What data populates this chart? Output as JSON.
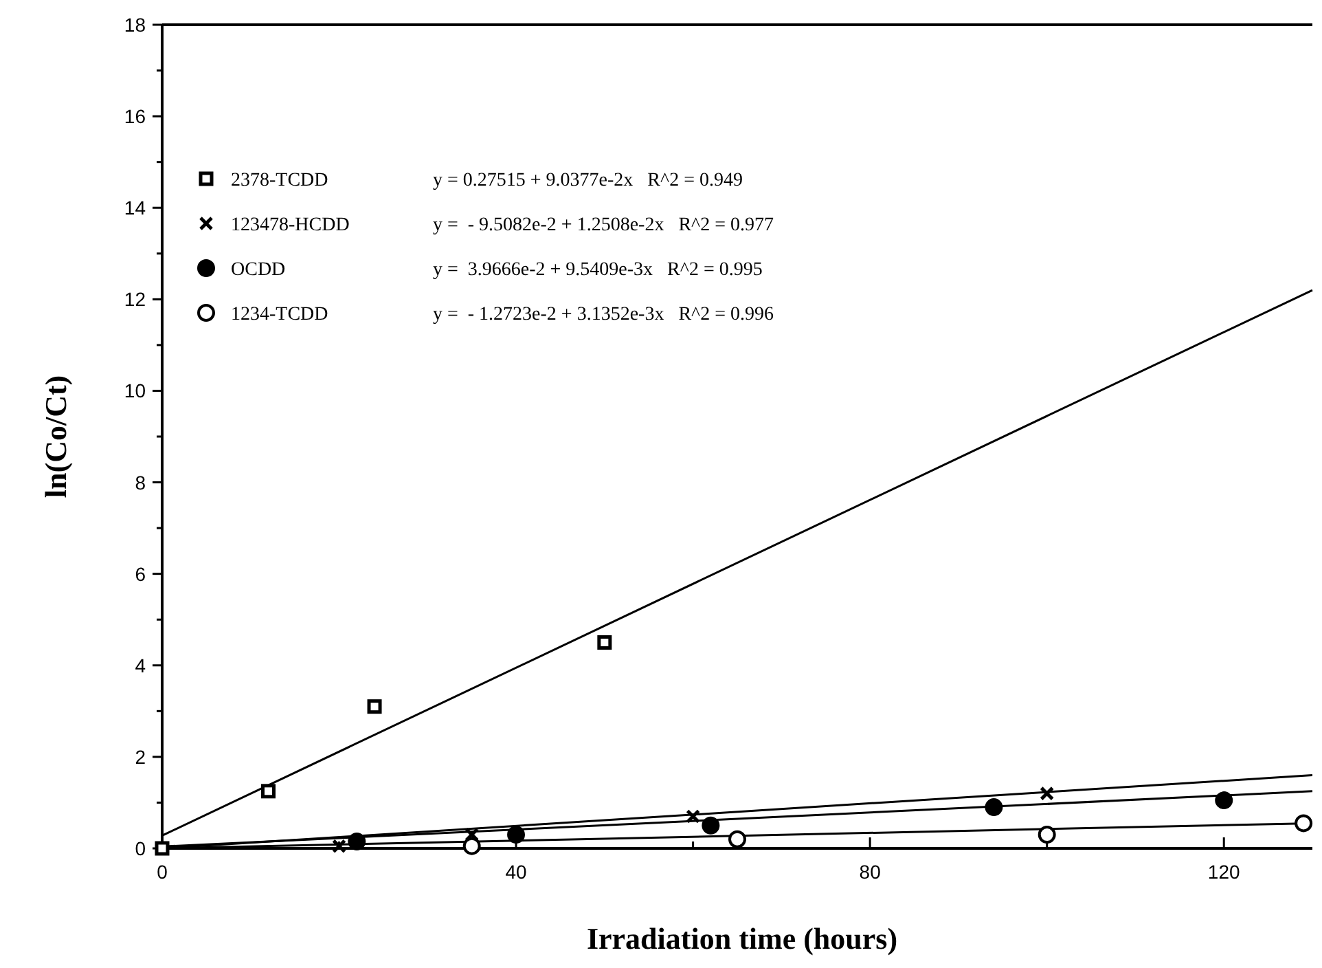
{
  "chart_data": {
    "type": "scatter",
    "xlabel": "Irradiation time (hours)",
    "ylabel": "ln(Co/Ct)",
    "xlim": [
      0,
      130
    ],
    "ylim": [
      0,
      18
    ],
    "xticks": [
      0,
      {
        "value": 20,
        "label": null
      },
      40,
      {
        "value": 60,
        "label": null
      },
      80,
      {
        "value": 100,
        "label": null
      },
      120
    ],
    "yticks": [
      0,
      {
        "value": 1,
        "label": null
      },
      2,
      {
        "value": 3,
        "label": null
      },
      4,
      {
        "value": 5,
        "label": null
      },
      6,
      {
        "value": 7,
        "label": null
      },
      8,
      {
        "value": 9,
        "label": null
      },
      10,
      {
        "value": 11,
        "label": null
      },
      12,
      {
        "value": 13,
        "label": null
      },
      14,
      {
        "value": 15,
        "label": null
      },
      16,
      {
        "value": 17,
        "label": null
      },
      18
    ],
    "grid": false,
    "legend": "top left",
    "series": [
      {
        "name": "2378-TCDD",
        "color": "#000000",
        "marker": "square",
        "x": [
          0,
          12,
          24,
          50
        ],
        "values": [
          0,
          1.25,
          3.1,
          4.5
        ]
      },
      {
        "name": "123478-HCDD",
        "color": "#000000",
        "marker": "cross",
        "x": [
          20,
          35,
          60,
          100
        ],
        "values": [
          0.05,
          0.3,
          0.7,
          1.2
        ]
      },
      {
        "name": "OCDD",
        "color": "#000000",
        "marker": "circle",
        "x": [
          22,
          40,
          62,
          94,
          120
        ],
        "values": [
          0.15,
          0.3,
          0.5,
          0.9,
          1.05
        ]
      },
      {
        "name": "1234-TCDD",
        "color": "#ffffff",
        "marker": "circle",
        "x": [
          35,
          65,
          100,
          129
        ],
        "values": [
          0.05,
          0.2,
          0.3,
          0.55
        ]
      },
      {
        "type": "line",
        "color": "#000000",
        "marker": "none",
        "x": [
          0,
          130
        ],
        "values": [
          0.28,
          12.2
        ]
      },
      {
        "type": "line",
        "color": "#000000",
        "marker": "none",
        "x": [
          0,
          130
        ],
        "values": [
          0,
          1.6
        ]
      },
      {
        "type": "line",
        "color": "#000000",
        "marker": "none",
        "x": [
          0,
          130
        ],
        "values": [
          0.04,
          1.25
        ]
      },
      {
        "type": "line",
        "color": "#000000",
        "marker": "none",
        "x": [
          0,
          130
        ],
        "values": [
          0,
          0.55
        ]
      }
    ],
    "annotations": [
      "y = 0.27515 + 9.0377e-2x   R^2 = 0.949",
      "y =  - 9.5082e-2 + 1.2508e-2x   R^2 = 0.977",
      "y =  3.9666e-2 + 9.5409e-3x   R^2 = 0.995",
      "y =  - 1.2723e-2 + 3.1352e-3x   R^2 = 0.996"
    ]
  }
}
